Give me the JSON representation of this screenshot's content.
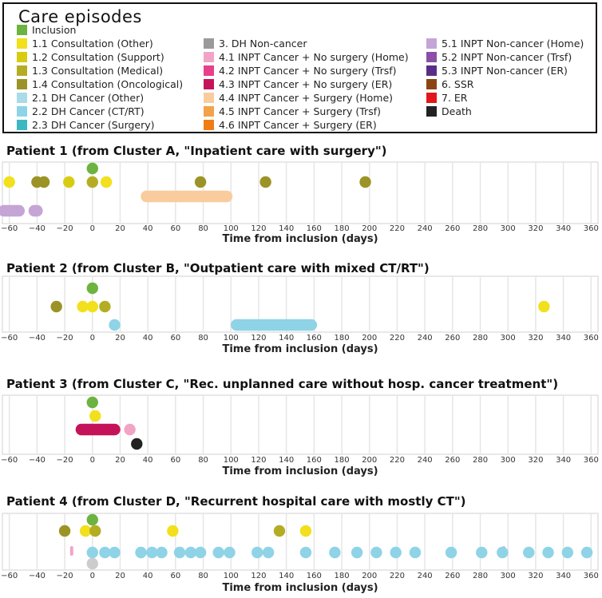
{
  "legend": {
    "title": "Care episodes",
    "items": [
      {
        "label": "Inclusion",
        "color": "#6db33f"
      },
      {
        "label": "1.1 Consultation (Other)",
        "color": "#f2e01c"
      },
      {
        "label": "1.2 Consultation (Support)",
        "color": "#d8cc12"
      },
      {
        "label": "1.3 Consultation (Medical)",
        "color": "#b4ad24"
      },
      {
        "label": "1.4 Consultation (Oncological)",
        "color": "#9c9326"
      },
      {
        "label": "2.1 DH Cancer (Other)",
        "color": "#a9dbe9"
      },
      {
        "label": "2.2 DH Cancer (CT/RT)",
        "color": "#8fd3e7"
      },
      {
        "label": "2.3 DH Cancer (Surgery)",
        "color": "#3cb8c2"
      },
      {
        "label": "3. DH Non-cancer",
        "color": "#9a9a9a"
      },
      {
        "label": "4.1 INPT Cancer + No surgery (Home)",
        "color": "#f2a4c6"
      },
      {
        "label": "4.2 INPT Cancer + No surgery (Trsf)",
        "color": "#e83f8a"
      },
      {
        "label": "4.3 INPT Cancer + No surgery (ER)",
        "color": "#c5135a"
      },
      {
        "label": "4.4 INPT Cancer + Surgery (Home)",
        "color": "#f9cc9e"
      },
      {
        "label": "4.5 INPT Cancer + Surgery (Trsf)",
        "color": "#f2a24a"
      },
      {
        "label": "4.6 INPT Cancer + Surgery (ER)",
        "color": "#ef7d12"
      },
      {
        "label": "5.1 INPT Non-cancer (Home)",
        "color": "#c4a5d6"
      },
      {
        "label": "5.2 INPT Non-cancer (Trsf)",
        "color": "#8a4fa6"
      },
      {
        "label": "5.3 INPT Non-cancer (ER)",
        "color": "#5c2d87"
      },
      {
        "label": "6. SSR",
        "color": "#8b4513"
      },
      {
        "label": "7. ER",
        "color": "#e2171b"
      },
      {
        "label": "Death",
        "color": "#222222"
      }
    ]
  },
  "chart_data": [
    {
      "type": "scatter",
      "title": "Patient 1 (from Cluster A, \"Inpatient care with surgery\")",
      "xlabel": "Time from inclusion (days)",
      "xlim": [
        -65,
        365
      ],
      "xticks": [
        -60,
        -40,
        -20,
        0,
        20,
        40,
        60,
        80,
        100,
        120,
        140,
        160,
        180,
        200,
        220,
        240,
        260,
        280,
        300,
        320,
        340,
        360
      ],
      "lanes": 3,
      "points": [
        {
          "lane": 0,
          "x": 0,
          "color": "#6db33f"
        },
        {
          "lane": 1,
          "x": -60,
          "color": "#f2e01c"
        },
        {
          "lane": 1,
          "x": -40,
          "color": "#9c9326"
        },
        {
          "lane": 1,
          "x": -35,
          "color": "#9c9326"
        },
        {
          "lane": 1,
          "x": -17,
          "color": "#d8cc12"
        },
        {
          "lane": 1,
          "x": 0,
          "color": "#b4ad24"
        },
        {
          "lane": 1,
          "x": 10,
          "color": "#f2e01c"
        },
        {
          "lane": 1,
          "x": 78,
          "color": "#9c9326"
        },
        {
          "lane": 1,
          "x": 125,
          "color": "#9c9326"
        },
        {
          "lane": 1,
          "x": 197,
          "color": "#9c9326"
        }
      ],
      "spans": [
        {
          "lane": 2,
          "start": 39,
          "end": 97,
          "color": "#f9cc9e"
        },
        {
          "lane": 3,
          "start": -64,
          "end": -53,
          "color": "#c4a5d6"
        },
        {
          "lane": 3,
          "start": -42,
          "end": -40,
          "color": "#c4a5d6"
        }
      ],
      "ticks_marks": []
    },
    {
      "type": "scatter",
      "title": "Patient 2 (from Cluster B, \"Outpatient care with mixed CT/RT\")",
      "xlabel": "Time from inclusion (days)",
      "xlim": [
        -65,
        365
      ],
      "xticks": [
        -60,
        -40,
        -20,
        0,
        20,
        40,
        60,
        80,
        100,
        120,
        140,
        160,
        180,
        200,
        220,
        240,
        260,
        280,
        300,
        320,
        340,
        360
      ],
      "lanes": 3,
      "points": [
        {
          "lane": 0,
          "x": 0,
          "color": "#6db33f"
        },
        {
          "lane": 1,
          "x": -26,
          "color": "#9c9326"
        },
        {
          "lane": 1,
          "x": -7,
          "color": "#f2e01c"
        },
        {
          "lane": 1,
          "x": 0,
          "color": "#f2e01c"
        },
        {
          "lane": 1,
          "x": 9,
          "color": "#b4ad24"
        },
        {
          "lane": 1,
          "x": 326,
          "color": "#f2e01c"
        },
        {
          "lane": 2,
          "x": 16,
          "color": "#8fd3e7"
        }
      ],
      "spans": [
        {
          "lane": 2,
          "start": 104,
          "end": 158,
          "color": "#8fd3e7"
        }
      ],
      "ticks_marks": []
    },
    {
      "type": "scatter",
      "title": "Patient 3 (from Cluster C, \"Rec. unplanned care without hosp. cancer treatment\")",
      "xlabel": "Time from inclusion (days)",
      "xlim": [
        -65,
        365
      ],
      "xticks": [
        -60,
        -40,
        -20,
        0,
        20,
        40,
        60,
        80,
        100,
        120,
        140,
        160,
        180,
        200,
        220,
        240,
        260,
        280,
        300,
        320,
        340,
        360
      ],
      "lanes": 4,
      "points": [
        {
          "lane": 0,
          "x": 0,
          "color": "#6db33f"
        },
        {
          "lane": 1,
          "x": 2,
          "color": "#f2e01c"
        },
        {
          "lane": 2,
          "x": 27,
          "color": "#f2a4c6"
        },
        {
          "lane": 3,
          "x": 32,
          "color": "#222222"
        }
      ],
      "spans": [
        {
          "lane": 2,
          "start": -8,
          "end": 16,
          "color": "#c5135a"
        }
      ],
      "ticks_marks": []
    },
    {
      "type": "scatter",
      "title": "Patient 4 (from Cluster D, \"Recurrent hospital care with mostly CT\")",
      "xlabel": "Time from inclusion (days)",
      "xlim": [
        -65,
        365
      ],
      "xticks": [
        -60,
        -40,
        -20,
        0,
        20,
        40,
        60,
        80,
        100,
        120,
        140,
        160,
        180,
        200,
        220,
        240,
        260,
        280,
        300,
        320,
        340,
        360
      ],
      "lanes": 4,
      "points": [
        {
          "lane": 0,
          "x": 0,
          "color": "#6db33f"
        },
        {
          "lane": 1,
          "x": -20,
          "color": "#9c9326"
        },
        {
          "lane": 1,
          "x": -5,
          "color": "#f2e01c"
        },
        {
          "lane": 1,
          "x": 2,
          "color": "#b4ad24"
        },
        {
          "lane": 1,
          "x": 58,
          "color": "#f2e01c"
        },
        {
          "lane": 1,
          "x": 135,
          "color": "#b4ad24"
        },
        {
          "lane": 1,
          "x": 154,
          "color": "#f2e01c"
        },
        {
          "lane": 2,
          "x": 0,
          "color": "#8fd3e7"
        },
        {
          "lane": 2,
          "x": 9,
          "color": "#8fd3e7"
        },
        {
          "lane": 2,
          "x": 16,
          "color": "#8fd3e7"
        },
        {
          "lane": 2,
          "x": 35,
          "color": "#8fd3e7"
        },
        {
          "lane": 2,
          "x": 43,
          "color": "#8fd3e7"
        },
        {
          "lane": 2,
          "x": 50,
          "color": "#8fd3e7"
        },
        {
          "lane": 2,
          "x": 63,
          "color": "#8fd3e7"
        },
        {
          "lane": 2,
          "x": 71,
          "color": "#8fd3e7"
        },
        {
          "lane": 2,
          "x": 78,
          "color": "#8fd3e7"
        },
        {
          "lane": 2,
          "x": 91,
          "color": "#8fd3e7"
        },
        {
          "lane": 2,
          "x": 99,
          "color": "#8fd3e7"
        },
        {
          "lane": 2,
          "x": 119,
          "color": "#8fd3e7"
        },
        {
          "lane": 2,
          "x": 127,
          "color": "#8fd3e7"
        },
        {
          "lane": 2,
          "x": 154,
          "color": "#8fd3e7"
        },
        {
          "lane": 2,
          "x": 175,
          "color": "#8fd3e7"
        },
        {
          "lane": 2,
          "x": 191,
          "color": "#8fd3e7"
        },
        {
          "lane": 2,
          "x": 205,
          "color": "#8fd3e7"
        },
        {
          "lane": 2,
          "x": 219,
          "color": "#8fd3e7"
        },
        {
          "lane": 2,
          "x": 233,
          "color": "#8fd3e7"
        },
        {
          "lane": 2,
          "x": 259,
          "color": "#8fd3e7"
        },
        {
          "lane": 2,
          "x": 281,
          "color": "#8fd3e7"
        },
        {
          "lane": 2,
          "x": 296,
          "color": "#8fd3e7"
        },
        {
          "lane": 2,
          "x": 315,
          "color": "#8fd3e7"
        },
        {
          "lane": 2,
          "x": 329,
          "color": "#8fd3e7"
        },
        {
          "lane": 2,
          "x": 343,
          "color": "#8fd3e7"
        },
        {
          "lane": 2,
          "x": 357,
          "color": "#8fd3e7"
        },
        {
          "lane": 3,
          "x": 0,
          "color": "#cccccc"
        }
      ],
      "spans": [],
      "ticks_marks": [
        {
          "x": -15,
          "color": "#f2a4c6"
        },
        {
          "x": 297,
          "color": "#f2a4c6"
        }
      ]
    }
  ]
}
